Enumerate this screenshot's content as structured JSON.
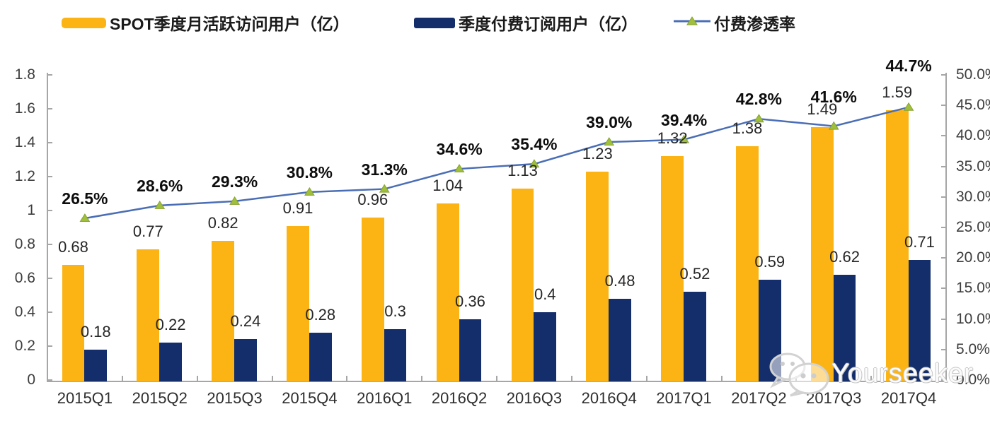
{
  "legend": {
    "items": [
      {
        "label": "SPOT季度月活跃访问用户（亿）"
      },
      {
        "label": "季度付费订阅用户（亿）"
      },
      {
        "label": "付费渗透率"
      }
    ]
  },
  "watermark": {
    "text": "Yourseeker",
    "icon": "wechat-chat-bubbles-icon"
  },
  "chart_data": {
    "type": "bar",
    "subtype": "combo-dual-axis-bar-line",
    "title": "",
    "categories": [
      "2015Q1",
      "2015Q2",
      "2015Q3",
      "2015Q4",
      "2016Q1",
      "2016Q2",
      "2016Q3",
      "2016Q4",
      "2017Q1",
      "2017Q2",
      "2017Q3",
      "2017Q4"
    ],
    "series": [
      {
        "name": "SPOT季度月活跃访问用户（亿）",
        "type": "bar",
        "axis": "left",
        "color": "#FBB414",
        "values": [
          0.68,
          0.77,
          0.82,
          0.91,
          0.96,
          1.04,
          1.13,
          1.23,
          1.32,
          1.38,
          1.49,
          1.59
        ],
        "labels": [
          "0.68",
          "0.77",
          "0.82",
          "0.91",
          "0.96",
          "1.04",
          "1.13",
          "1.23",
          "1.32",
          "1.38",
          "1.49",
          "1.59"
        ]
      },
      {
        "name": "季度付费订阅用户（亿）",
        "type": "bar",
        "axis": "left",
        "color": "#132E6B",
        "values": [
          0.18,
          0.22,
          0.24,
          0.28,
          0.3,
          0.36,
          0.4,
          0.48,
          0.52,
          0.59,
          0.62,
          0.71
        ],
        "labels": [
          "0.18",
          "0.22",
          "0.24",
          "0.28",
          "0.3",
          "0.36",
          "0.4",
          "0.48",
          "0.52",
          "0.59",
          "0.62",
          "0.71"
        ]
      },
      {
        "name": "付费渗透率",
        "type": "line",
        "axis": "right",
        "color": "#4A6EB5",
        "marker": "triangle",
        "marker_color": "#A0BF3C",
        "values": [
          26.5,
          28.6,
          29.3,
          30.8,
          31.3,
          34.6,
          35.4,
          39.0,
          39.4,
          42.8,
          41.6,
          44.7
        ],
        "labels": [
          "26.5%",
          "28.6%",
          "29.3%",
          "30.8%",
          "31.3%",
          "34.6%",
          "35.4%",
          "39.0%",
          "39.4%",
          "42.8%",
          "41.6%",
          "44.7%"
        ],
        "label_dy": [
          0,
          0,
          0,
          0,
          0,
          0,
          0,
          0,
          0,
          0,
          -14,
          -31
        ]
      }
    ],
    "left_axis": {
      "min": 0,
      "max": 1.8,
      "step": 0.2,
      "ticks": [
        "1.8",
        "1.6",
        "1.4",
        "1.2",
        "1",
        "0.8",
        "0.6",
        "0.4",
        "0.2",
        "0"
      ]
    },
    "right_axis": {
      "min": 0,
      "max": 50,
      "step": 5,
      "ticks": [
        "50.0%",
        "45.0%",
        "40.0%",
        "35.0%",
        "30.0%",
        "25.0%",
        "20.0%",
        "15.0%",
        "10.0%",
        "5.0%",
        "0.0%"
      ]
    },
    "grid": false,
    "legend_position": "top",
    "colors": {
      "bar_mau": "#FBB414",
      "bar_subs": "#132E6B",
      "line": "#4A6EB5",
      "marker": "#A0BF3C",
      "axis": "#A6A6A6",
      "value_label": "#262626"
    }
  }
}
